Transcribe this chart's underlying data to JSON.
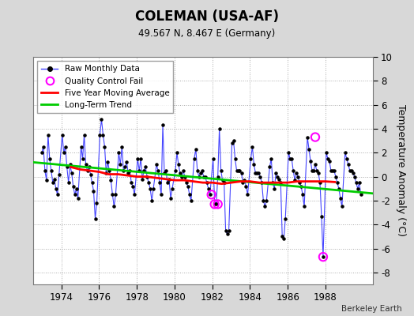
{
  "title": "COLEMAN (USA-AF)",
  "subtitle": "49.567 N, 8.467 E (Germany)",
  "ylabel": "Temperature Anomaly (°C)",
  "credit": "Berkeley Earth",
  "legend_labels": [
    "Raw Monthly Data",
    "Quality Control Fail",
    "Five Year Moving Average",
    "Long-Term Trend"
  ],
  "xlim": [
    1972.5,
    1990.5
  ],
  "ylim": [
    -9,
    10
  ],
  "yticks": [
    -8,
    -6,
    -4,
    -2,
    0,
    2,
    4,
    6,
    8,
    10
  ],
  "xticks": [
    1974,
    1976,
    1978,
    1980,
    1982,
    1984,
    1986,
    1988
  ],
  "bg_color": "#d8d8d8",
  "plot_bg_color": "#ffffff",
  "raw_line_color": "#4444ff",
  "raw_dot_color": "#000000",
  "moving_avg_color": "#ff0000",
  "trend_color": "#00cc00",
  "qc_fail_color": "#ff00ff",
  "raw_data_times": [
    1972.958,
    1973.042,
    1973.125,
    1973.208,
    1973.292,
    1973.375,
    1973.458,
    1973.542,
    1973.625,
    1973.708,
    1973.792,
    1973.875,
    1974.042,
    1974.125,
    1974.208,
    1974.292,
    1974.375,
    1974.458,
    1974.542,
    1974.625,
    1974.708,
    1974.792,
    1974.875,
    1975.042,
    1975.125,
    1975.208,
    1975.292,
    1975.375,
    1975.458,
    1975.542,
    1975.625,
    1975.708,
    1975.792,
    1975.875,
    1976.042,
    1976.125,
    1976.208,
    1976.292,
    1976.375,
    1976.458,
    1976.542,
    1976.625,
    1976.708,
    1976.792,
    1976.875,
    1977.042,
    1977.125,
    1977.208,
    1977.292,
    1977.375,
    1977.458,
    1977.542,
    1977.625,
    1977.708,
    1977.792,
    1977.875,
    1978.042,
    1978.125,
    1978.208,
    1978.292,
    1978.375,
    1978.458,
    1978.542,
    1978.625,
    1978.708,
    1978.792,
    1978.875,
    1979.042,
    1979.125,
    1979.208,
    1979.292,
    1979.375,
    1979.458,
    1979.542,
    1979.625,
    1979.708,
    1979.792,
    1979.875,
    1980.042,
    1980.125,
    1980.208,
    1980.292,
    1980.375,
    1980.458,
    1980.542,
    1980.625,
    1980.708,
    1980.792,
    1980.875,
    1981.042,
    1981.125,
    1981.208,
    1981.292,
    1981.375,
    1981.458,
    1981.542,
    1981.625,
    1981.708,
    1981.792,
    1981.875,
    1982.042,
    1982.125,
    1982.208,
    1982.292,
    1982.375,
    1982.458,
    1982.542,
    1982.625,
    1982.708,
    1982.792,
    1982.875,
    1983.042,
    1983.125,
    1983.208,
    1983.292,
    1983.375,
    1983.458,
    1983.542,
    1983.625,
    1983.708,
    1983.792,
    1983.875,
    1984.042,
    1984.125,
    1984.208,
    1984.292,
    1984.375,
    1984.458,
    1984.542,
    1984.625,
    1984.708,
    1984.792,
    1984.875,
    1985.042,
    1985.125,
    1985.208,
    1985.292,
    1985.375,
    1985.458,
    1985.542,
    1985.625,
    1985.708,
    1985.792,
    1985.875,
    1986.042,
    1986.125,
    1986.208,
    1986.292,
    1986.375,
    1986.458,
    1986.542,
    1986.625,
    1986.708,
    1986.792,
    1986.875,
    1987.042,
    1987.125,
    1987.208,
    1987.292,
    1987.375,
    1987.458,
    1987.542,
    1987.625,
    1987.708,
    1987.792,
    1987.875,
    1988.042,
    1988.125,
    1988.208,
    1988.292,
    1988.375,
    1988.458,
    1988.542,
    1988.625,
    1988.708,
    1988.792,
    1988.875,
    1989.042,
    1989.125,
    1989.208,
    1989.292,
    1989.375,
    1989.458,
    1989.542,
    1989.625,
    1989.708,
    1989.792,
    1989.875
  ],
  "raw_data_values": [
    2.0,
    2.5,
    0.5,
    -0.3,
    3.5,
    1.5,
    0.5,
    -0.5,
    -0.2,
    -1.0,
    -1.5,
    0.2,
    3.5,
    2.0,
    2.5,
    0.8,
    -0.5,
    1.0,
    0.3,
    -0.8,
    -1.5,
    -1.0,
    -1.8,
    2.5,
    1.5,
    3.5,
    1.0,
    0.5,
    0.8,
    0.2,
    -0.5,
    -1.2,
    -3.5,
    -2.2,
    3.5,
    4.8,
    3.5,
    2.5,
    0.3,
    1.2,
    0.5,
    -0.3,
    -1.5,
    -2.5,
    -1.5,
    2.0,
    1.0,
    2.5,
    0.5,
    0.8,
    1.2,
    0.3,
    0.5,
    -0.5,
    -0.8,
    -1.5,
    1.5,
    0.5,
    1.5,
    -0.2,
    0.5,
    0.8,
    0.0,
    -0.5,
    -1.0,
    -2.0,
    -1.0,
    1.0,
    0.5,
    -0.5,
    -1.5,
    4.3,
    0.3,
    0.5,
    -0.5,
    -0.2,
    -1.8,
    -1.0,
    0.5,
    2.0,
    1.0,
    0.3,
    0.0,
    0.5,
    0.0,
    -0.5,
    -0.8,
    -1.5,
    -2.0,
    1.5,
    2.3,
    0.5,
    0.0,
    0.3,
    0.5,
    0.0,
    0.0,
    -0.5,
    -1.0,
    -1.5,
    1.5,
    -2.3,
    -2.3,
    0.0,
    4.0,
    0.5,
    -0.3,
    -0.5,
    -4.5,
    -4.8,
    -4.5,
    2.8,
    3.0,
    1.5,
    0.5,
    0.5,
    0.5,
    0.3,
    -0.5,
    -0.3,
    -0.8,
    -1.5,
    1.5,
    2.5,
    1.0,
    0.3,
    0.3,
    0.3,
    0.0,
    -0.5,
    -2.0,
    -2.5,
    -2.0,
    0.8,
    1.5,
    -0.5,
    -1.0,
    0.3,
    0.0,
    -0.2,
    -0.5,
    -5.0,
    -5.2,
    -3.5,
    2.0,
    1.5,
    1.5,
    0.5,
    -0.3,
    0.3,
    0.0,
    -0.5,
    -0.8,
    -1.5,
    -2.5,
    3.3,
    2.3,
    1.3,
    0.5,
    0.5,
    1.0,
    0.5,
    0.3,
    -0.5,
    -3.3,
    -6.7,
    2.0,
    1.5,
    1.3,
    0.5,
    0.5,
    0.5,
    0.0,
    -0.5,
    -1.0,
    -1.8,
    -2.5,
    2.0,
    1.5,
    1.0,
    0.5,
    0.5,
    0.3,
    0.0,
    -0.5,
    -1.0,
    -0.5,
    -1.5
  ],
  "qc_times": [
    1981.958,
    1982.125,
    1982.292,
    1987.458,
    1987.875
  ],
  "qc_values": [
    -1.5,
    -2.3,
    -2.3,
    3.3,
    -6.7
  ],
  "ma_times": [
    1974.5,
    1975.0,
    1975.5,
    1976.0,
    1976.5,
    1977.0,
    1977.5,
    1978.0,
    1978.5,
    1979.0,
    1979.5,
    1980.0,
    1980.5,
    1981.0,
    1981.5,
    1982.0,
    1982.5,
    1983.0,
    1983.5,
    1984.0,
    1984.5,
    1985.0,
    1985.5,
    1986.0,
    1986.5,
    1987.0,
    1987.5,
    1988.0,
    1988.5
  ],
  "ma_values": [
    0.8,
    0.6,
    0.5,
    0.4,
    0.2,
    0.2,
    0.1,
    0.0,
    0.0,
    -0.1,
    -0.2,
    -0.3,
    -0.3,
    -0.4,
    -0.5,
    -0.5,
    -0.6,
    -0.5,
    -0.4,
    -0.4,
    -0.5,
    -0.5,
    -0.5,
    -0.5,
    -0.4,
    -0.4,
    -0.4,
    -0.4,
    -0.45
  ],
  "trend_times": [
    1972.5,
    1990.5
  ],
  "trend_values": [
    1.2,
    -1.4
  ]
}
